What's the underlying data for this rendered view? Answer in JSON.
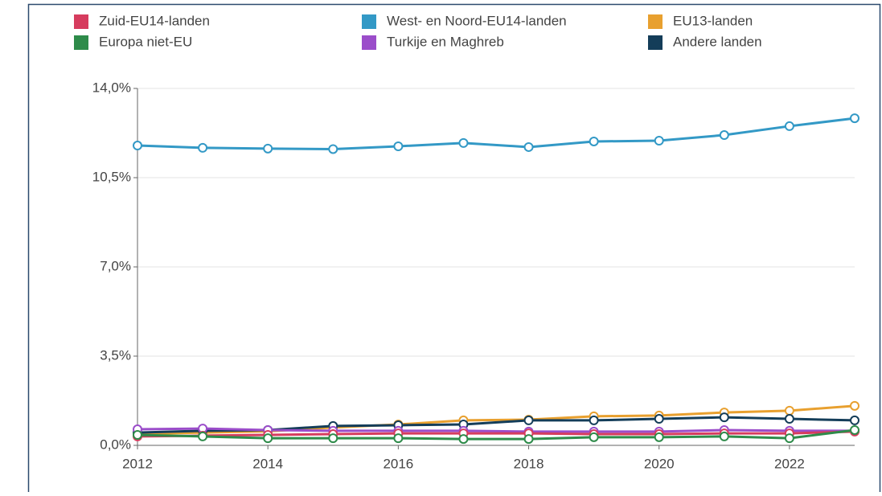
{
  "chart_data": {
    "type": "line",
    "x": [
      2012,
      2013,
      2014,
      2015,
      2016,
      2017,
      2018,
      2019,
      2020,
      2021,
      2022,
      2023
    ],
    "series": [
      {
        "name": "Zuid-EU14-landen",
        "color": "#d63c5e",
        "values": [
          0.35,
          0.38,
          0.41,
          0.44,
          0.47,
          0.47,
          0.47,
          0.44,
          0.44,
          0.47,
          0.47,
          0.54
        ]
      },
      {
        "name": "West- en Noord-EU14-landen",
        "color": "#3399c6",
        "values": [
          11.76,
          11.67,
          11.64,
          11.62,
          11.73,
          11.86,
          11.7,
          11.92,
          11.95,
          12.17,
          12.52,
          12.83
        ]
      },
      {
        "name": "EU13-landen",
        "color": "#e8a02f",
        "values": [
          0.45,
          0.5,
          0.55,
          0.7,
          0.82,
          0.98,
          1.01,
          1.14,
          1.17,
          1.29,
          1.36,
          1.55
        ]
      },
      {
        "name": "Europa niet-EU",
        "color": "#2e8b4a",
        "values": [
          0.41,
          0.35,
          0.28,
          0.28,
          0.28,
          0.25,
          0.25,
          0.32,
          0.32,
          0.35,
          0.28,
          0.6
        ]
      },
      {
        "name": "Turkije en Maghreb",
        "color": "#9b4dca",
        "values": [
          0.63,
          0.66,
          0.6,
          0.57,
          0.57,
          0.57,
          0.54,
          0.54,
          0.54,
          0.6,
          0.57,
          0.57
        ]
      },
      {
        "name": "Andere landen",
        "color": "#143d59",
        "values": [
          0.5,
          0.57,
          0.6,
          0.76,
          0.79,
          0.82,
          0.98,
          0.98,
          1.04,
          1.1,
          1.04,
          0.98
        ]
      }
    ],
    "xlim": [
      2012,
      2023
    ],
    "xticks": [
      2012,
      2014,
      2016,
      2018,
      2020,
      2022
    ],
    "ylim": [
      0,
      14
    ],
    "yticks": [
      {
        "value": 0,
        "label": "0,0%"
      },
      {
        "value": 3.5,
        "label": "3,5%"
      },
      {
        "value": 7,
        "label": "7,0%"
      },
      {
        "value": 10.5,
        "label": "10,5%"
      },
      {
        "value": 14,
        "label": "14,0%"
      }
    ],
    "grid": true
  }
}
